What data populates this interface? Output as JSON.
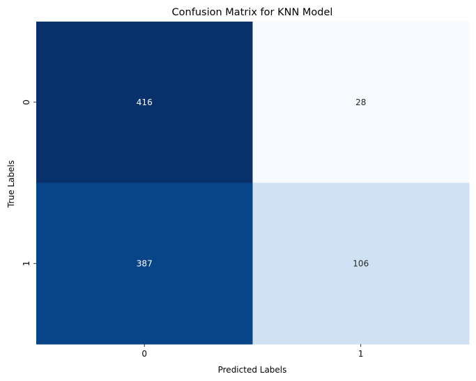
{
  "chart_data": {
    "type": "heatmap",
    "title": "Confusion Matrix for KNN Model",
    "xlabel": "Predicted Labels",
    "ylabel": "True Labels",
    "x_categories": [
      "0",
      "1"
    ],
    "y_categories": [
      "0",
      "1"
    ],
    "values": [
      [
        416,
        28
      ],
      [
        387,
        106
      ]
    ],
    "colormap": "Blues",
    "colorbar": false,
    "vmin": 28,
    "vmax": 416
  }
}
